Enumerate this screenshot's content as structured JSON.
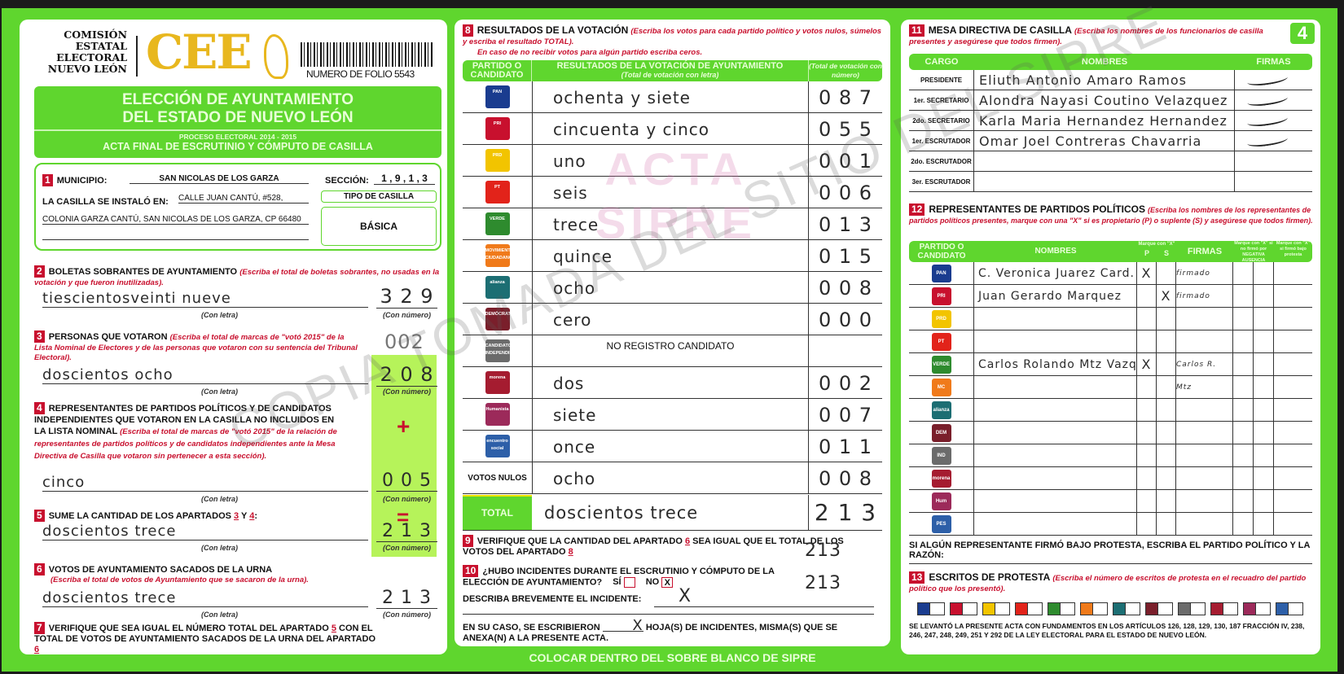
{
  "header": {
    "org_lines": [
      "COMISIÓN",
      "ESTATAL",
      "ELECTORAL",
      "NUEVO LEÓN"
    ],
    "logo_text": "CEE",
    "folio": "NUMERO DE FOLIO 5543",
    "page_number": "4"
  },
  "title": {
    "line1": "ELECCIÓN DE AYUNTAMIENTO",
    "line2": "DEL ESTADO DE NUEVO LEÓN",
    "process": "PROCESO ELECTORAL 2014 - 2015",
    "acta": "ACTA FINAL DE ESCRUTINIO Y CÓMPUTO DE CASILLA"
  },
  "s1": {
    "n": "1",
    "municipio_label": "MUNICIPIO:",
    "municipio": "SAN NICOLAS DE LOS GARZA",
    "seccion_label": "SECCIÓN:",
    "seccion": "1 , 9 , 1 , 3",
    "instalo_label": "LA CASILLA SE INSTALÓ EN:",
    "address1": "CALLE JUAN CANTÚ, #528,",
    "address2": "COLONIA GARZA CANTÚ, SAN NICOLAS DE LOS GARZA, CP 66480",
    "tipo_label": "TIPO DE CASILLA",
    "tipo": "BÁSICA"
  },
  "captions": {
    "letra": "(Con letra)",
    "numero": "(Con número)"
  },
  "s2": {
    "n": "2",
    "title": "BOLETAS SOBRANTES DE AYUNTAMIENTO",
    "note": "(Escriba el total de boletas sobrantes, no usadas en la votación y que fueron inutilizadas).",
    "letra": "tiescientosveinti nueve",
    "numero": "3 2 9"
  },
  "s3": {
    "n": "3",
    "title": "PERSONAS QUE VOTARON",
    "note": "(Escriba el total de marcas de \"votó 2015\" de la Lista Nominal de Electores y de las personas que votaron con su sentencia del Tribunal Electoral).",
    "letra": "doscientos ocho",
    "numero": "2 0 8",
    "annotation": "002"
  },
  "s4": {
    "n": "4",
    "title": "REPRESENTANTES DE PARTIDOS POLÍTICOS Y DE CANDIDATOS INDEPENDIENTES QUE VOTARON EN LA CASILLA NO INCLUIDOS EN LA LISTA NOMINAL",
    "note": "(Escriba el total de marcas de \"votó 2015\" de la relación de representantes de partidos políticos y de candidatos independientes ante la Mesa Directiva de Casilla que votaron sin pertenecer a esta sección).",
    "letra": "cinco",
    "numero": "0 0 5",
    "plus": "+"
  },
  "s5": {
    "n": "5",
    "title": "SUME LA CANTIDAD DE LOS APARTADOS",
    "a": "3",
    "y": "Y",
    "b": "4",
    "colon": ":",
    "letra": "doscientos trece",
    "numero": "2 1 3",
    "equals": "="
  },
  "s6": {
    "n": "6",
    "title": "VOTOS DE AYUNTAMIENTO SACADOS DE LA URNA",
    "note": "(Escriba el total de votos de Ayuntamiento que se sacaron de la urna).",
    "letra": "doscientos trece",
    "numero": "2 1 3"
  },
  "s7": {
    "n": "7",
    "text1": "VERIFIQUE QUE SEA IGUAL EL NÚMERO TOTAL DEL APARTADO",
    "a": "5",
    "text2": "CON EL TOTAL DE VOTOS DE AYUNTAMIENTO SACADOS DE LA URNA DEL APARTADO",
    "b": "6"
  },
  "s8": {
    "n": "8",
    "title": "RESULTADOS DE LA VOTACIÓN",
    "note": "(Escriba los votos para cada partido político y votos nulos, súmelos y escriba el resultado TOTAL).",
    "note2": "En caso de no recibir votos para algún partido escriba ceros.",
    "col_party": "PARTIDO O CANDIDATO",
    "col_letra": "RESULTADOS DE LA VOTACIÓN DE AYUNTAMIENTO",
    "col_letra_sub": "(Total de votación con letra)",
    "col_num": "(Total de votación con número)",
    "rows": [
      {
        "logo": "PAN",
        "color": "#1a3c8f",
        "letra": "ochenta y siete",
        "numero": "0 8 7"
      },
      {
        "logo": "PRI",
        "color": "#c8102e",
        "letra": "cincuenta y cinco",
        "numero": "0 5 5"
      },
      {
        "logo": "PRD",
        "color": "#f2c400",
        "letra": "uno",
        "numero": "0 0 1"
      },
      {
        "logo": "PT",
        "color": "#e2231a",
        "letra": "seis",
        "numero": "0 0 6"
      },
      {
        "logo": "VERDE",
        "color": "#2e8b2e",
        "letra": "trece",
        "numero": "0 1 3"
      },
      {
        "logo": "MOVIMIENTO CIUDADANO",
        "color": "#f07a1a",
        "letra": "quince",
        "numero": "0 1 5"
      },
      {
        "logo": "alianza",
        "color": "#1c6e73",
        "letra": "ocho",
        "numero": "0 0 8"
      },
      {
        "logo": "DEMÓCRATA",
        "color": "#7a1f2b",
        "letra": "cero",
        "numero": "0 0 0"
      },
      {
        "logo": "CANDIDATO INDEPENDIENTE",
        "color": "#6b6b6b",
        "letra": "NO REGISTRO CANDIDATO",
        "numero": ""
      },
      {
        "logo": "morena",
        "color": "#a51c30",
        "letra": "dos",
        "numero": "0 0 2"
      },
      {
        "logo": "Humanista",
        "color": "#9c2a5a",
        "letra": "siete",
        "numero": "0 0 7"
      },
      {
        "logo": "encuentro social",
        "color": "#2d5fa8",
        "letra": "once",
        "numero": "0 1 1"
      },
      {
        "logo": "VOTOS NULOS",
        "color": "",
        "letra": "ocho",
        "numero": "0 0 8"
      }
    ],
    "total_label": "TOTAL",
    "total_letra": "doscientos trece",
    "total_numero": "2 1 3"
  },
  "s9": {
    "n": "9",
    "text1": "VERIFIQUE QUE LA CANTIDAD DEL APARTADO",
    "a": "6",
    "text2": "SEA IGUAL QUE EL TOTAL DE LOS VOTOS DEL APARTADO",
    "b": "8",
    "handwritten": "213"
  },
  "s10": {
    "n": "10",
    "question": "¿HUBO INCIDENTES DURANTE EL ESCRUTINIO Y CÓMPUTO DE LA ELECCIÓN DE AYUNTAMIENTO?",
    "si": "SÍ",
    "no": "NO",
    "no_mark": "X",
    "handwritten": "213",
    "describe": "DESCRIBA BREVEMENTE EL INCIDENTE:",
    "describe_value": "X",
    "hojas1": "EN SU CASO, SE ESCRIBIERON",
    "hojas_value": "X",
    "hojas2": "HOJA(S) DE INCIDENTES, MISMA(S) QUE SE ANEXA(N) A LA PRESENTE ACTA."
  },
  "s11": {
    "n": "11",
    "title": "MESA DIRECTIVA DE CASILLA",
    "note": "(Escriba los nombres de los funcionarios de casilla presentes y asegúrese que todos firmen).",
    "col_cargo": "CARGO",
    "col_nombres": "NOMBRES",
    "col_firmas": "FIRMAS",
    "rows": [
      {
        "cargo": "PRESIDENTE",
        "nombre": "Eliuth Antonio Amaro Ramos",
        "firma": "firmado"
      },
      {
        "cargo": "1er. SECRETARIO",
        "nombre": "Alondra Nayasi Coutino Velazquez",
        "firma": "firmado"
      },
      {
        "cargo": "2do. SECRETARIO",
        "nombre": "Karla Maria Hernandez Hernandez",
        "firma": "firmado"
      },
      {
        "cargo": "1er. ESCRUTADOR",
        "nombre": "Omar Joel Contreras Chavarria",
        "firma": "firmado"
      },
      {
        "cargo": "2do. ESCRUTADOR",
        "nombre": "",
        "firma": ""
      },
      {
        "cargo": "3er. ESCRUTADOR",
        "nombre": "",
        "firma": ""
      }
    ]
  },
  "s12": {
    "n": "12",
    "title": "REPRESENTANTES DE PARTIDOS POLÍTICOS",
    "note": "(Escriba los nombres de los representantes de partidos políticos presentes, marque con una \"X\" si es propietario (P) o suplente (S) y asegúrese que todos firmen).",
    "col_party": "PARTIDO O CANDIDATO",
    "col_nombres": "NOMBRES",
    "col_mark": "Marque con \"X\"",
    "col_p": "P",
    "col_s": "S",
    "col_firmas": "FIRMAS",
    "col_nofirmo": "Marque con \"X\" si no firmó por",
    "col_nofirmo_a": "NEGATIVA",
    "col_nofirmo_b": "AUSENCIA",
    "col_protesta": "Marque con \"X\" si firmó bajo protesta",
    "rows": [
      {
        "logo": "PAN",
        "color": "#1a3c8f",
        "nombre": "C. Veronica Juarez Card.",
        "p": "X",
        "s": "",
        "firma": "firmado"
      },
      {
        "logo": "PRI",
        "color": "#c8102e",
        "nombre": "Juan Gerardo Marquez",
        "p": "",
        "s": "X",
        "firma": "firmado"
      },
      {
        "logo": "PRD",
        "color": "#f2c400",
        "nombre": "",
        "p": "",
        "s": "",
        "firma": ""
      },
      {
        "logo": "PT",
        "color": "#e2231a",
        "nombre": "",
        "p": "",
        "s": "",
        "firma": ""
      },
      {
        "logo": "VERDE",
        "color": "#2e8b2e",
        "nombre": "Carlos Rolando Mtz Vazquez",
        "p": "X",
        "s": "",
        "firma": "Carlos R. Mtz"
      },
      {
        "logo": "MC",
        "color": "#f07a1a",
        "nombre": "",
        "p": "",
        "s": "",
        "firma": ""
      },
      {
        "logo": "alianza",
        "color": "#1c6e73",
        "nombre": "",
        "p": "",
        "s": "",
        "firma": ""
      },
      {
        "logo": "DEM",
        "color": "#7a1f2b",
        "nombre": "",
        "p": "",
        "s": "",
        "firma": ""
      },
      {
        "logo": "IND",
        "color": "#6b6b6b",
        "nombre": "",
        "p": "",
        "s": "",
        "firma": ""
      },
      {
        "logo": "morena",
        "color": "#a51c30",
        "nombre": "",
        "p": "",
        "s": "",
        "firma": ""
      },
      {
        "logo": "Hum",
        "color": "#9c2a5a",
        "nombre": "",
        "p": "",
        "s": "",
        "firma": ""
      },
      {
        "logo": "PES",
        "color": "#2d5fa8",
        "nombre": "",
        "p": "",
        "s": "",
        "firma": ""
      }
    ],
    "protest_line": "SI ALGÚN REPRESENTANTE FIRMÓ BAJO PROTESTA, ESCRIBA EL PARTIDO POLÍTICO Y LA RAZÓN:"
  },
  "s13": {
    "n": "13",
    "title": "ESCRITOS DE PROTESTA",
    "note": "(Escriba el número de escritos de protesta en el recuadro del partido político que los presentó).",
    "party_colors": [
      "#1a3c8f",
      "#c8102e",
      "#f2c400",
      "#e2231a",
      "#2e8b2e",
      "#f07a1a",
      "#1c6e73",
      "#7a1f2b",
      "#6b6b6b",
      "#a51c30",
      "#9c2a5a",
      "#2d5fa8"
    ],
    "legal": "SE LEVANTÓ LA PRESENTE ACTA CON FUNDAMENTOS EN LOS ARTÍCULOS 126, 128, 129, 130, 187 FRACCIÓN IV, 238, 246, 247, 248, 249, 251 Y 292 DE LA LEY ELECTORAL PARA EL ESTADO DE NUEVO LEÓN."
  },
  "footer": "COLOCAR DENTRO DEL SOBRE BLANCO DE SIPRE",
  "watermarks": {
    "acta": "ACTA",
    "sipre": "SIPRE",
    "copia": "COPIA TOMADA DEL SITIO DEL SIPRE"
  },
  "colors": {
    "green": "#5fd62e",
    "lime": "#b6f35a",
    "red": "#c8102e",
    "gold": "#e8b71e"
  }
}
